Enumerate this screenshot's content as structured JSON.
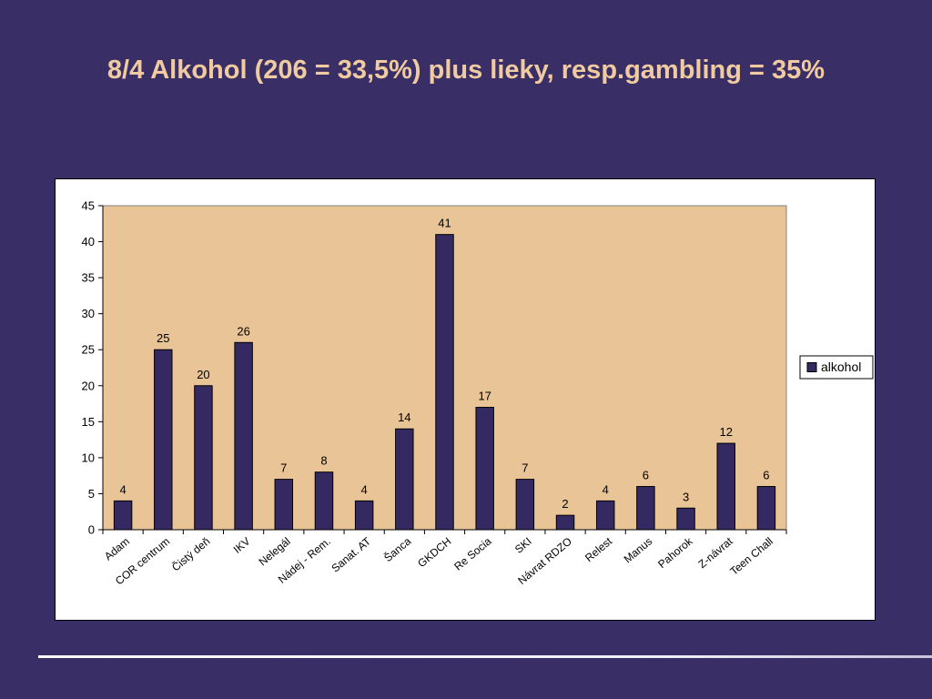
{
  "slide": {
    "title": "8/4 Alkohol  (206 = 33,5%) plus lieky, resp.gambling = 35%"
  },
  "colors": {
    "background": "#392f66",
    "title": "#f0caa0",
    "plot_area": "#e8c497",
    "bar": "#342a61"
  },
  "chart_data": {
    "type": "bar",
    "title": "",
    "xlabel": "",
    "ylabel": "",
    "ylim": [
      0,
      45
    ],
    "yticks": [
      0,
      5,
      10,
      15,
      20,
      25,
      30,
      35,
      40,
      45
    ],
    "grid": false,
    "legend_position": "right",
    "categories": [
      "Adam",
      "COR centrum",
      "Čistý deň",
      "IKV",
      "Nelegál",
      "Nádej - Rem.",
      "Sanat. AT",
      "Šanca",
      "GKDCH",
      "Re Socia",
      "SKI",
      "Návrat RDZO",
      "Relest",
      "Manus",
      "Pahorok",
      "Z-návrat",
      "Teen Chall"
    ],
    "series": [
      {
        "name": "alkohol",
        "values": [
          4,
          25,
          20,
          26,
          7,
          8,
          4,
          14,
          41,
          17,
          7,
          2,
          4,
          6,
          3,
          12,
          6
        ]
      }
    ]
  }
}
